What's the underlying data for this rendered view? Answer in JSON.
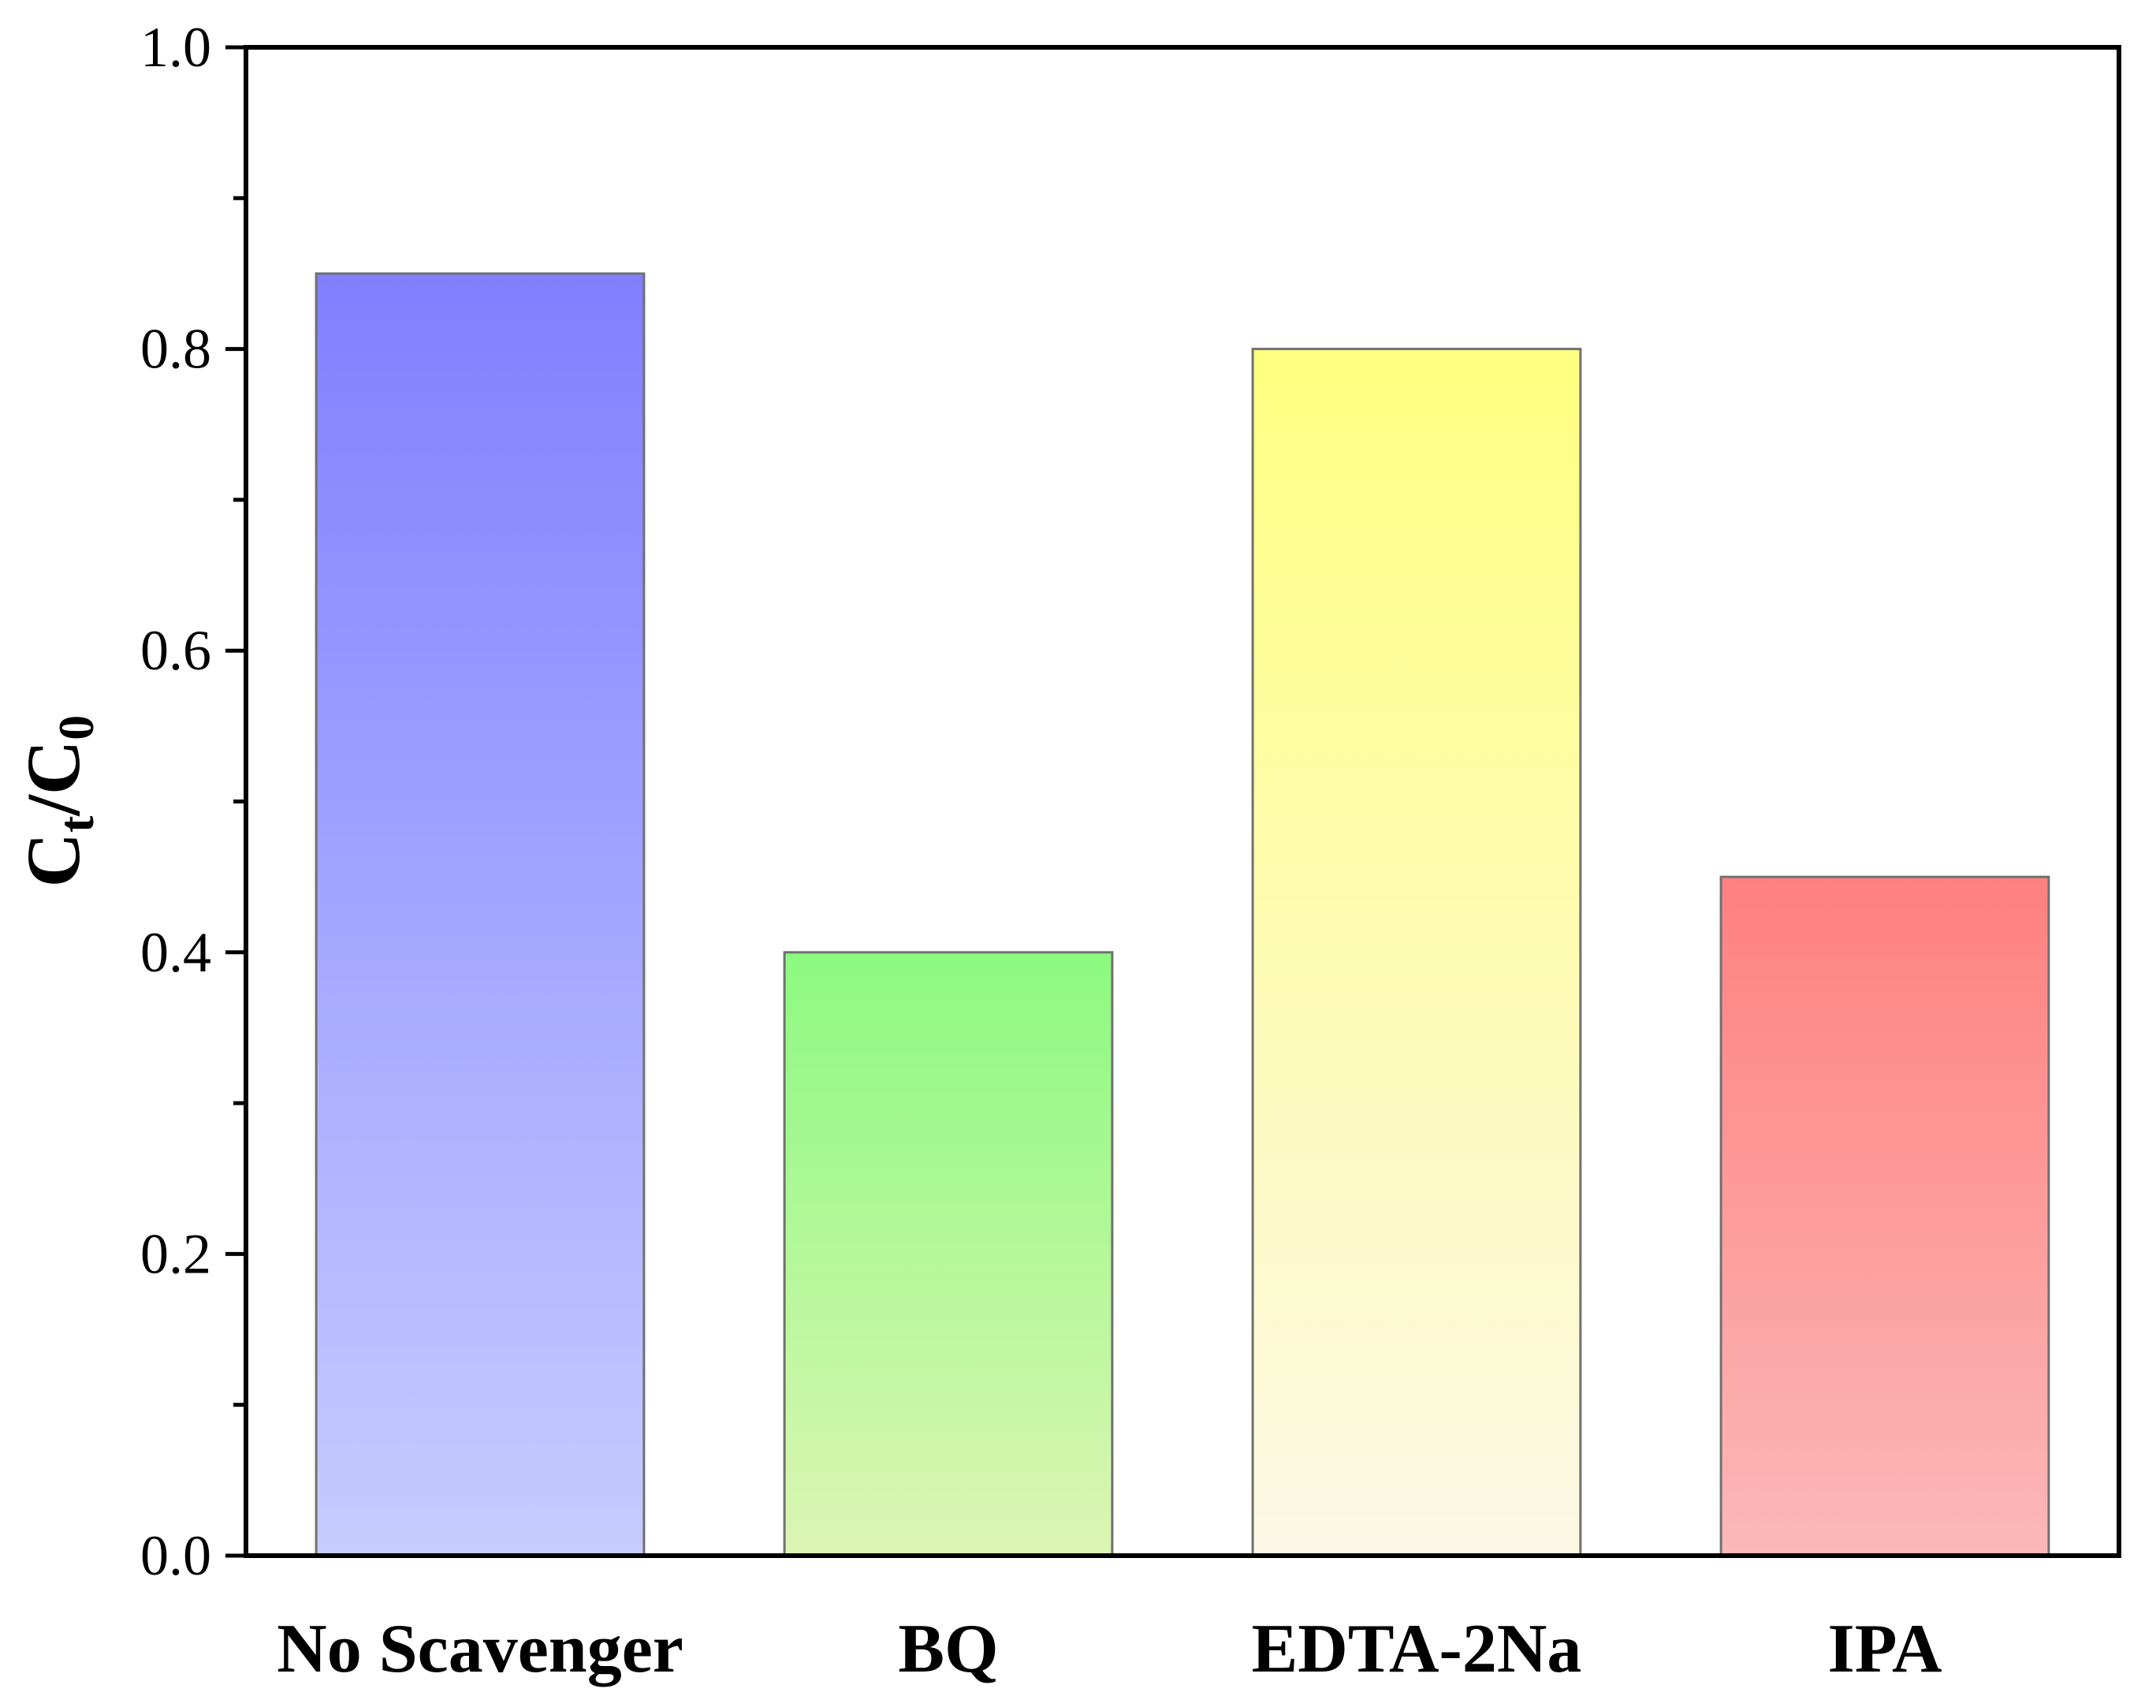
{
  "chart_data": {
    "type": "bar",
    "categories": [
      "No Scavenger",
      "BQ",
      "EDTA-2Na",
      "IPA"
    ],
    "values": [
      0.85,
      0.4,
      0.8,
      0.45
    ],
    "ylim": [
      0.0,
      1.0
    ],
    "yticks": [
      "0.0",
      "0.2",
      "0.4",
      "0.6",
      "0.8",
      "1.0"
    ],
    "ylabel": {
      "main": "C",
      "sub1": "t",
      "slash": "/C",
      "sub2": "0"
    },
    "xlabel": "",
    "title": "",
    "bar_colors": [
      {
        "top": "#8080ff",
        "bottom": "#c6ccff"
      },
      {
        "top": "#8cfa80",
        "bottom": "#dcf5b4"
      },
      {
        "top": "#ffff80",
        "bottom": "#fbf8e6"
      },
      {
        "top": "#ff8080",
        "bottom": "#fbb8b8"
      }
    ]
  }
}
